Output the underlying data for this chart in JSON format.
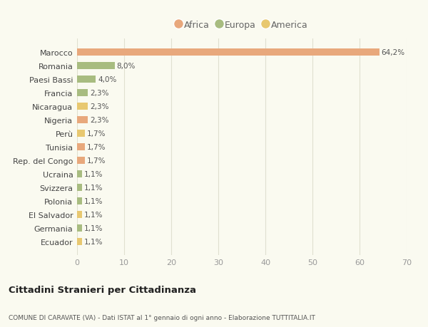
{
  "categories": [
    "Ecuador",
    "Germania",
    "El Salvador",
    "Polonia",
    "Svizzera",
    "Ucraina",
    "Rep. del Congo",
    "Tunisia",
    "Perù",
    "Nigeria",
    "Nicaragua",
    "Francia",
    "Paesi Bassi",
    "Romania",
    "Marocco"
  ],
  "values": [
    1.1,
    1.1,
    1.1,
    1.1,
    1.1,
    1.1,
    1.7,
    1.7,
    1.7,
    2.3,
    2.3,
    2.3,
    4.0,
    8.0,
    64.2
  ],
  "labels": [
    "1,1%",
    "1,1%",
    "1,1%",
    "1,1%",
    "1,1%",
    "1,1%",
    "1,7%",
    "1,7%",
    "1,7%",
    "2,3%",
    "2,3%",
    "2,3%",
    "4,0%",
    "8,0%",
    "64,2%"
  ],
  "continent": [
    "America",
    "Europa",
    "America",
    "Europa",
    "Europa",
    "Europa",
    "Africa",
    "Africa",
    "America",
    "Africa",
    "America",
    "Europa",
    "Europa",
    "Europa",
    "Africa"
  ],
  "africa_color": "#e8a87c",
  "europa_color": "#a8bc80",
  "america_color": "#e8c870",
  "background_color": "#fafaf0",
  "grid_color": "#e0e0d0",
  "title1": "Cittadini Stranieri per Cittadinanza",
  "title2": "COMUNE DI CARAVATE (VA) - Dati ISTAT al 1° gennaio di ogni anno - Elaborazione TUTTITALIA.IT",
  "xlim": [
    0,
    70
  ],
  "xticks": [
    0,
    10,
    20,
    30,
    40,
    50,
    60,
    70
  ],
  "bar_height": 0.55
}
